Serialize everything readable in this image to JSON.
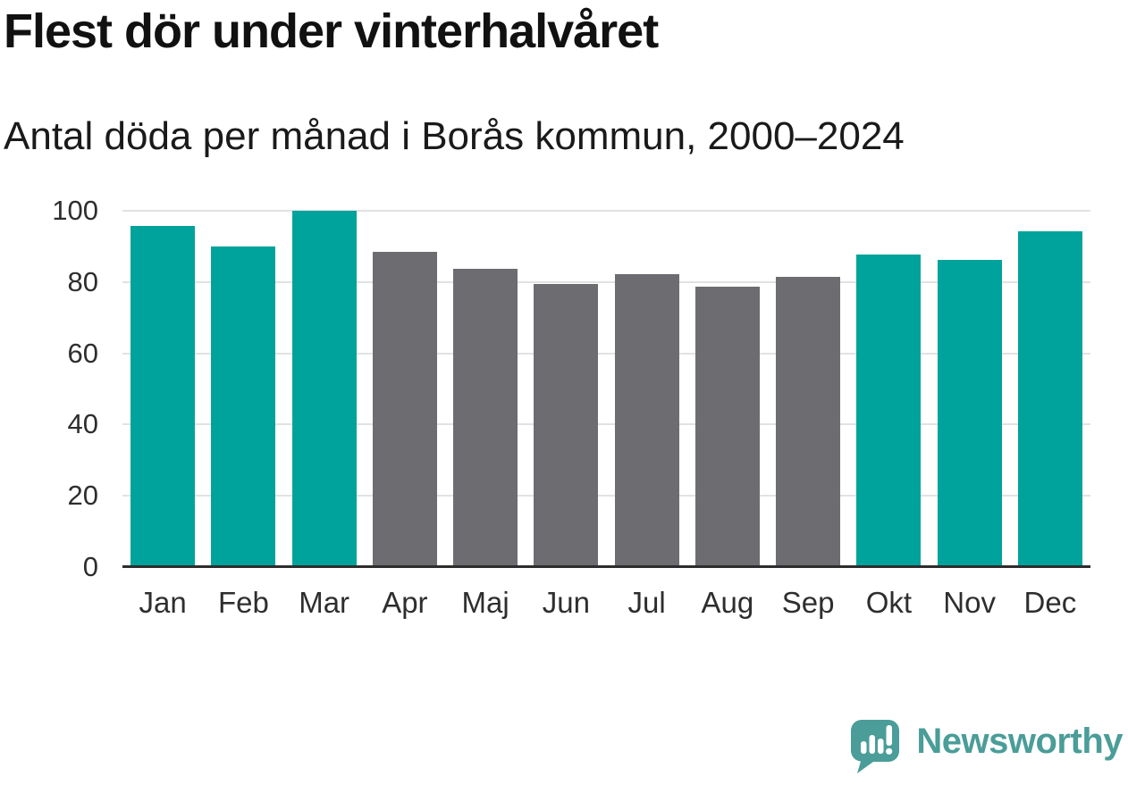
{
  "header": {
    "title": "Flest dör under vinterhalvåret",
    "subtitle": "Antal döda per månad i Borås kommun, 2000–2024"
  },
  "chart_data": {
    "type": "bar",
    "title": "Flest dör under vinterhalvåret",
    "subtitle": "Antal döda per månad i Borås kommun, 2000–2024",
    "categories": [
      "Jan",
      "Feb",
      "Mar",
      "Apr",
      "Maj",
      "Jun",
      "Jul",
      "Aug",
      "Sep",
      "Okt",
      "Nov",
      "Dec"
    ],
    "values": [
      95.8,
      90.1,
      99.9,
      88.6,
      83.7,
      79.4,
      82.3,
      78.7,
      81.5,
      87.8,
      86.2,
      94.3
    ],
    "bar_groups": [
      "winter",
      "winter",
      "winter",
      "summer",
      "summer",
      "summer",
      "summer",
      "summer",
      "summer",
      "winter",
      "winter",
      "winter"
    ],
    "group_colors": {
      "winter": "#00a39b",
      "summer": "#6c6c71"
    },
    "xlabel": "",
    "ylabel": "",
    "ylim": [
      0,
      100
    ],
    "yticks": [
      0,
      20,
      40,
      60,
      80,
      100
    ],
    "grid": "horizontal-only",
    "legend": "none"
  },
  "colors": {
    "background": "#ffffff",
    "title_text": "#111111",
    "subtitle_text": "#1a1a1a",
    "tick_text": "#2e2e2e",
    "gridline": "#e2e2e2",
    "axis_line": "#2d2d2d",
    "accent_teal": "#00a39b",
    "neutral_gray": "#6c6c71",
    "logo_teal": "#4a9d98"
  },
  "footer": {
    "brand": "Newsworthy"
  },
  "icons": {
    "logo": "newsworthy-speech-bubble-chart-icon"
  }
}
